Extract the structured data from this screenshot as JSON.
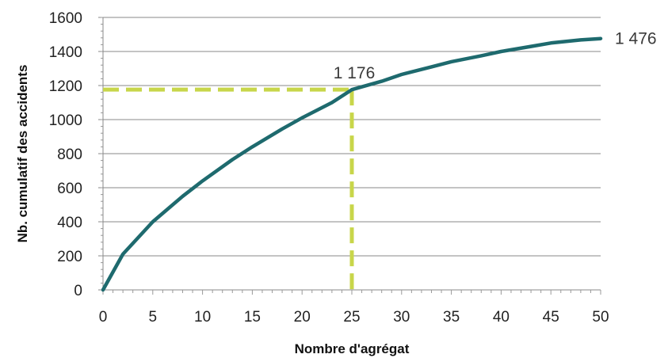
{
  "chart_data": {
    "type": "line",
    "title": "",
    "xlabel": "Nombre d'agrégat",
    "ylabel": "Nb. cumulatif des accidents",
    "xlim": [
      0,
      50
    ],
    "ylim": [
      0,
      1600
    ],
    "x_ticks": [
      "0",
      "5",
      "10",
      "15",
      "20",
      "25",
      "30",
      "35",
      "40",
      "45",
      "50"
    ],
    "y_ticks": [
      "0",
      "200",
      "400",
      "600",
      "800",
      "1000",
      "1200",
      "1400",
      "1600"
    ],
    "grid": "horizontal",
    "legend": "none",
    "series": [
      {
        "color": "#1e6a6e",
        "x": [
          0,
          2,
          5,
          8,
          10,
          13,
          15,
          18,
          20,
          23,
          25,
          28,
          30,
          33,
          35,
          38,
          40,
          43,
          45,
          48,
          50
        ],
        "y": [
          0,
          210,
          400,
          550,
          640,
          765,
          840,
          945,
          1010,
          1100,
          1176,
          1225,
          1265,
          1310,
          1340,
          1375,
          1400,
          1430,
          1450,
          1468,
          1476
        ]
      }
    ],
    "annotations": [
      {
        "text": "1 176",
        "x": 25,
        "y": 1176,
        "guides": true,
        "guide_color": "#c8d64a"
      },
      {
        "text": "1 476",
        "x": 50,
        "y": 1476
      }
    ]
  }
}
